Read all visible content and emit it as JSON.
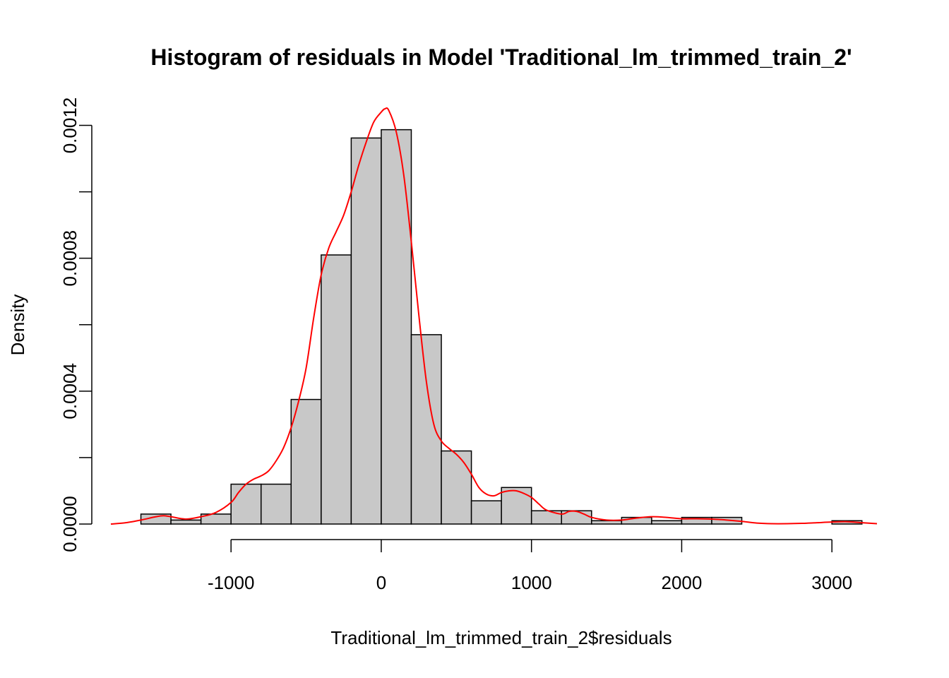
{
  "chart_data": {
    "type": "bar",
    "title": "Histogram of residuals in Model 'Traditional_lm_trimmed_train_2'",
    "xlabel": "Traditional_lm_trimmed_train_2$residuals",
    "ylabel": "Density",
    "xlim": [
      -1800,
      3300
    ],
    "ylim": [
      0,
      0.00125
    ],
    "bin_width": 200,
    "bin_starts": [
      -1600,
      -1400,
      -1200,
      -1000,
      -800,
      -600,
      -400,
      -200,
      0,
      200,
      400,
      600,
      800,
      1000,
      1200,
      1400,
      1600,
      1800,
      2000,
      2200,
      2400,
      2600,
      2800,
      3000
    ],
    "values": [
      3e-05,
      1.2e-05,
      3e-05,
      0.00012,
      0.00012,
      0.000375,
      0.00081,
      0.001162,
      0.001187,
      0.00057,
      0.00022,
      7e-05,
      0.00011,
      4e-05,
      4e-05,
      1e-05,
      2e-05,
      1e-05,
      2e-05,
      2e-05,
      0,
      0,
      0,
      1e-05
    ],
    "x_ticks": [
      -1000,
      0,
      1000,
      2000,
      3000
    ],
    "x_tick_labels": [
      "-1000",
      "0",
      "1000",
      "2000",
      "3000"
    ],
    "y_ticks": [
      0,
      0.0002,
      0.0004,
      0.0006,
      0.0008,
      0.001,
      0.0012
    ],
    "y_tick_labels": [
      "0.0000",
      "",
      "0.0004",
      "",
      "0.0008",
      "",
      "0.0012"
    ],
    "density_series": {
      "color": "#ff0000",
      "x": [
        -1800,
        -1700,
        -1600,
        -1500,
        -1450,
        -1400,
        -1300,
        -1200,
        -1100,
        -1000,
        -950,
        -900,
        -850,
        -800,
        -750,
        -700,
        -650,
        -600,
        -550,
        -500,
        -450,
        -400,
        -350,
        -300,
        -250,
        -200,
        -150,
        -100,
        -50,
        0,
        25,
        50,
        100,
        150,
        200,
        250,
        300,
        350,
        400,
        450,
        500,
        550,
        600,
        650,
        700,
        750,
        800,
        850,
        900,
        950,
        1000,
        1050,
        1100,
        1200,
        1250,
        1300,
        1350,
        1400,
        1500,
        1600,
        1700,
        1800,
        1900,
        2000,
        2100,
        2200,
        2300,
        2400,
        2500,
        2600,
        2700,
        2800,
        2900,
        3000,
        3100,
        3200,
        3300
      ],
      "y": [
        0,
        4e-06,
        1.2e-05,
        2.2e-05,
        2.5e-05,
        2.2e-05,
        1.5e-05,
        2.2e-05,
        3.5e-05,
        6.5e-05,
        9.5e-05,
        0.00012,
        0.000135,
        0.000145,
        0.00016,
        0.00019,
        0.00023,
        0.00029,
        0.00037,
        0.00047,
        0.00062,
        0.00075,
        0.00083,
        0.00088,
        0.00093,
        0.001,
        0.00108,
        0.00115,
        0.00121,
        0.00124,
        0.00125,
        0.001245,
        0.00118,
        0.00105,
        0.00085,
        0.00063,
        0.00043,
        0.0003,
        0.00025,
        0.000228,
        0.00021,
        0.000185,
        0.00015,
        0.00011,
        9e-05,
        8.5e-05,
        9.5e-05,
        0.0001,
        0.0001,
        9.2e-05,
        8e-05,
        6e-05,
        4.2e-05,
        3e-05,
        3.8e-05,
        3.8e-05,
        3e-05,
        2e-05,
        1.2e-05,
        1.2e-05,
        1.8e-05,
        2.2e-05,
        2e-05,
        1.6e-05,
        1.6e-05,
        1.5e-05,
        1.2e-05,
        8e-06,
        3e-06,
        1e-06,
        1e-06,
        2e-06,
        4e-06,
        6e-06,
        7e-06,
        4e-06,
        1e-06
      ]
    },
    "bar_fill": "#c8c8c8",
    "bar_stroke": "#000000",
    "grid": false,
    "legend": false
  }
}
